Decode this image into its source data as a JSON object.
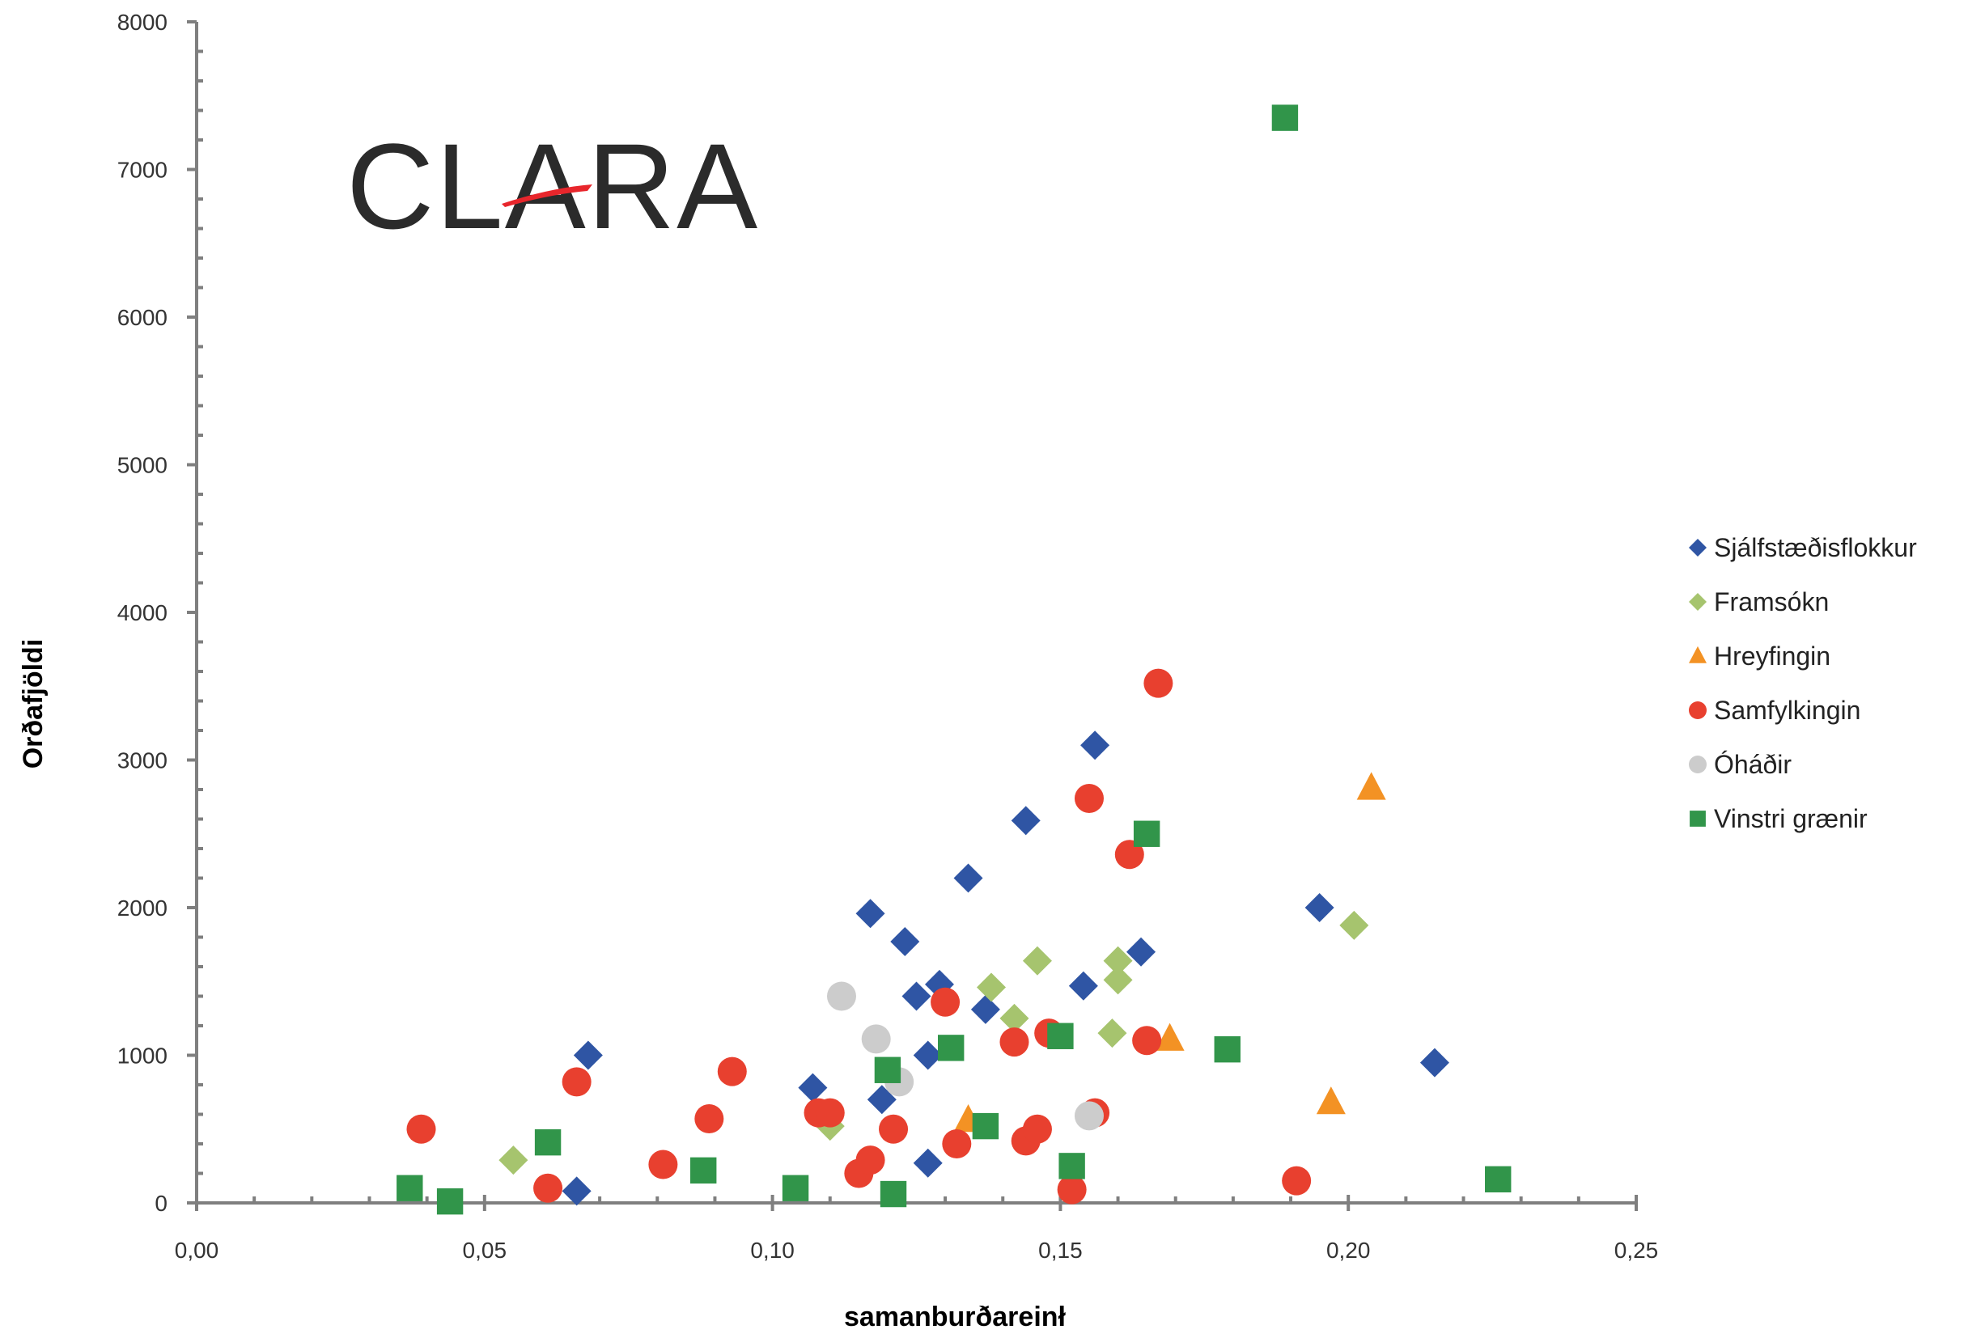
{
  "logo": {
    "text": "CLARA",
    "swoosh_color": "#e8262c",
    "text_color": "#2b2b2b"
  },
  "chart_data": {
    "type": "scatter",
    "title": "",
    "xlabel": "samanburðareinł",
    "ylabel": "Orðafjöldi",
    "xlim": [
      0,
      0.25
    ],
    "ylim": [
      0,
      8000
    ],
    "x_ticks": [
      {
        "value": 0.0,
        "label": "0,00"
      },
      {
        "value": 0.05,
        "label": "0,05"
      },
      {
        "value": 0.1,
        "label": "0,10"
      },
      {
        "value": 0.15,
        "label": "0,15"
      },
      {
        "value": 0.2,
        "label": "0,20"
      },
      {
        "value": 0.25,
        "label": "0,25"
      }
    ],
    "y_ticks": [
      {
        "value": 0,
        "label": "0"
      },
      {
        "value": 1000,
        "label": "1000"
      },
      {
        "value": 2000,
        "label": "2000"
      },
      {
        "value": 3000,
        "label": "3000"
      },
      {
        "value": 4000,
        "label": "4000"
      },
      {
        "value": 5000,
        "label": "5000"
      },
      {
        "value": 6000,
        "label": "6000"
      },
      {
        "value": 7000,
        "label": "7000"
      },
      {
        "value": 8000,
        "label": "8000"
      }
    ],
    "grid": false,
    "legend_position": "right",
    "series": [
      {
        "name": "Sjálfstæðisflokkur",
        "marker": "diamond",
        "color": "#2f55a4",
        "points": [
          [
            0.066,
            80
          ],
          [
            0.068,
            1000
          ],
          [
            0.107,
            780
          ],
          [
            0.117,
            1960
          ],
          [
            0.119,
            700
          ],
          [
            0.123,
            1770
          ],
          [
            0.125,
            1400
          ],
          [
            0.127,
            1000
          ],
          [
            0.127,
            270
          ],
          [
            0.129,
            1480
          ],
          [
            0.134,
            2200
          ],
          [
            0.137,
            1310
          ],
          [
            0.144,
            2590
          ],
          [
            0.154,
            1470
          ],
          [
            0.156,
            3100
          ],
          [
            0.164,
            1700
          ],
          [
            0.195,
            2000
          ],
          [
            0.215,
            950
          ]
        ]
      },
      {
        "name": "Framsókn",
        "marker": "diamond",
        "color": "#a6c46e",
        "points": [
          [
            0.055,
            290
          ],
          [
            0.11,
            520
          ],
          [
            0.138,
            1460
          ],
          [
            0.142,
            1250
          ],
          [
            0.146,
            1640
          ],
          [
            0.159,
            1150
          ],
          [
            0.16,
            1510
          ],
          [
            0.16,
            1640
          ],
          [
            0.201,
            1880
          ]
        ]
      },
      {
        "name": "Hreyfingin",
        "marker": "triangle",
        "color": "#f39224",
        "points": [
          [
            0.134,
            560
          ],
          [
            0.169,
            1110
          ],
          [
            0.197,
            680
          ],
          [
            0.204,
            2810
          ]
        ]
      },
      {
        "name": "Samfylkingin",
        "marker": "circle",
        "color": "#e8402f",
        "points": [
          [
            0.039,
            500
          ],
          [
            0.061,
            100
          ],
          [
            0.066,
            820
          ],
          [
            0.081,
            260
          ],
          [
            0.089,
            570
          ],
          [
            0.093,
            890
          ],
          [
            0.108,
            610
          ],
          [
            0.11,
            610
          ],
          [
            0.115,
            200
          ],
          [
            0.117,
            290
          ],
          [
            0.121,
            500
          ],
          [
            0.13,
            1360
          ],
          [
            0.132,
            400
          ],
          [
            0.142,
            1090
          ],
          [
            0.144,
            420
          ],
          [
            0.146,
            500
          ],
          [
            0.148,
            1150
          ],
          [
            0.152,
            90
          ],
          [
            0.155,
            2740
          ],
          [
            0.156,
            610
          ],
          [
            0.162,
            2360
          ],
          [
            0.165,
            1100
          ],
          [
            0.167,
            3520
          ],
          [
            0.191,
            150
          ]
        ]
      },
      {
        "name": "Óháðir",
        "marker": "circle",
        "color": "#cccccc",
        "points": [
          [
            0.112,
            1400
          ],
          [
            0.118,
            1110
          ],
          [
            0.122,
            820
          ],
          [
            0.155,
            590
          ]
        ]
      },
      {
        "name": "Vinstri grænir",
        "marker": "square",
        "color": "#31954a",
        "points": [
          [
            0.037,
            100
          ],
          [
            0.044,
            10
          ],
          [
            0.061,
            410
          ],
          [
            0.088,
            220
          ],
          [
            0.104,
            100
          ],
          [
            0.12,
            900
          ],
          [
            0.121,
            60
          ],
          [
            0.131,
            1050
          ],
          [
            0.137,
            520
          ],
          [
            0.15,
            1130
          ],
          [
            0.152,
            250
          ],
          [
            0.165,
            2500
          ],
          [
            0.179,
            1040
          ],
          [
            0.189,
            7350
          ],
          [
            0.226,
            160
          ]
        ]
      }
    ]
  }
}
